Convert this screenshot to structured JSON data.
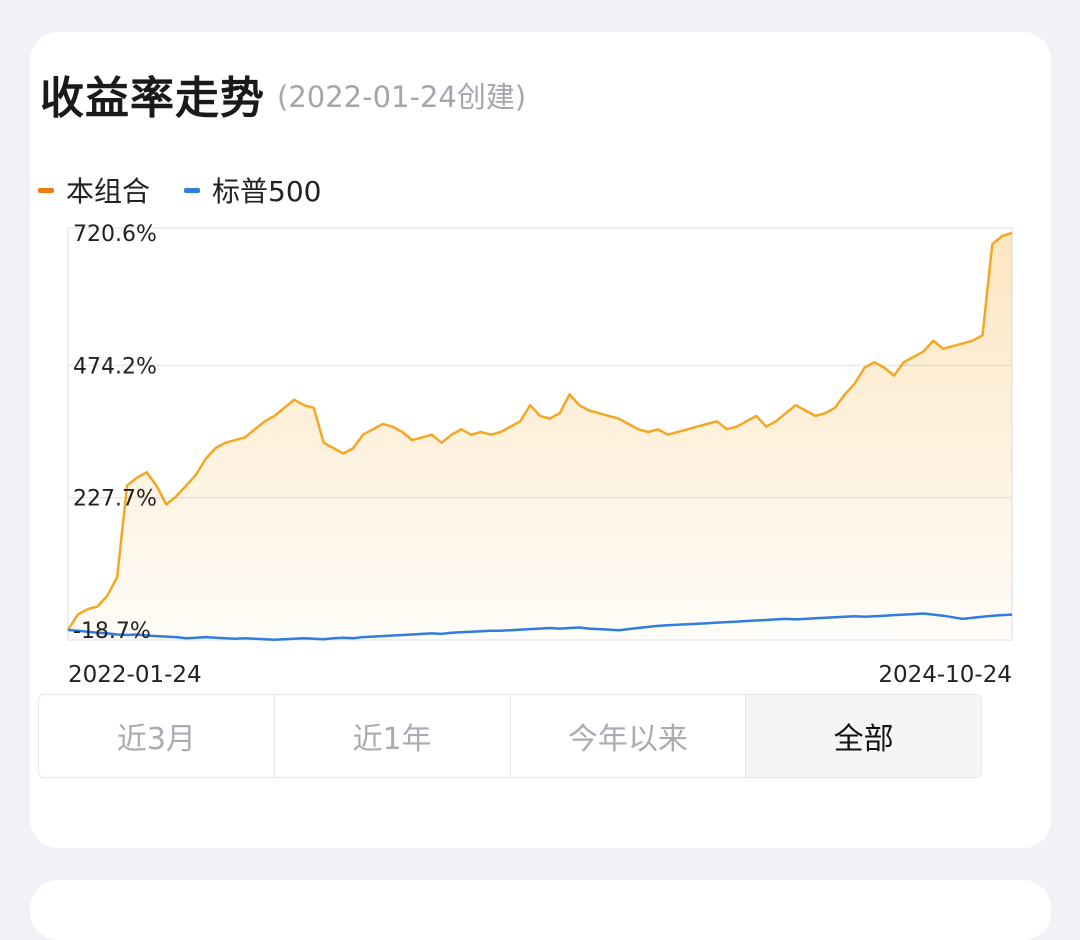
{
  "header": {
    "title": "收益率走势",
    "subtitle": "(2022-01-24创建)"
  },
  "legend": [
    {
      "label": "本组合",
      "color": "#f07a12"
    },
    {
      "label": "标普500",
      "color": "#2f7de1"
    }
  ],
  "chart_data": {
    "type": "area",
    "y_unit": "%",
    "y_tick_labels": [
      "720.6%",
      "474.2%",
      "227.7%",
      "-18.7%"
    ],
    "y_ticks": [
      720.6,
      474.2,
      227.7,
      -18.7
    ],
    "ylim": [
      -18.7,
      720.6
    ],
    "x_start_label": "2022-01-24",
    "x_end_label": "2024-10-24",
    "grid": true,
    "series": [
      {
        "name": "本组合",
        "color": "#f5a623",
        "fill": "area",
        "values": [
          -18.7,
          10,
          20,
          25,
          45,
          80,
          250,
          265,
          275,
          250,
          215,
          230,
          250,
          270,
          300,
          320,
          330,
          335,
          340,
          355,
          370,
          380,
          395,
          410,
          400,
          395,
          330,
          320,
          310,
          320,
          345,
          355,
          365,
          360,
          350,
          335,
          340,
          345,
          330,
          345,
          355,
          345,
          350,
          345,
          350,
          360,
          370,
          400,
          380,
          375,
          385,
          420,
          400,
          390,
          385,
          380,
          375,
          365,
          355,
          350,
          355,
          345,
          350,
          355,
          360,
          365,
          370,
          355,
          360,
          370,
          380,
          360,
          370,
          385,
          400,
          390,
          380,
          385,
          395,
          420,
          440,
          470,
          480,
          470,
          455,
          480,
          490,
          500,
          520,
          505,
          510,
          515,
          520,
          530,
          700,
          715,
          720.6
        ]
      },
      {
        "name": "标普500",
        "color": "#2f7de1",
        "fill": "none",
        "values": [
          -18.7,
          -20,
          -22,
          -24,
          -25,
          -27,
          -28,
          -27,
          -29,
          -30,
          -31,
          -32,
          -34,
          -33,
          -32,
          -33,
          -34,
          -35,
          -34,
          -35,
          -36,
          -37,
          -36,
          -35,
          -34,
          -35,
          -36,
          -34,
          -33,
          -34,
          -32,
          -31,
          -30,
          -29,
          -28,
          -27,
          -26,
          -25,
          -26,
          -24,
          -23,
          -22,
          -21,
          -20,
          -20,
          -19,
          -18,
          -17,
          -16,
          -15,
          -16,
          -15,
          -14,
          -16,
          -17,
          -18,
          -19,
          -17,
          -15,
          -13,
          -11,
          -10,
          -9,
          -8,
          -7,
          -6,
          -5,
          -4,
          -3,
          -2,
          -1,
          0,
          1,
          2,
          1,
          2,
          3,
          4,
          5,
          6,
          7,
          6,
          7,
          8,
          9,
          10,
          11,
          12,
          10,
          8,
          5,
          2,
          4,
          6,
          8,
          9,
          10
        ]
      }
    ]
  },
  "range_tabs": {
    "items": [
      "近3月",
      "近1年",
      "今年以来",
      "全部"
    ],
    "selected": "全部"
  }
}
